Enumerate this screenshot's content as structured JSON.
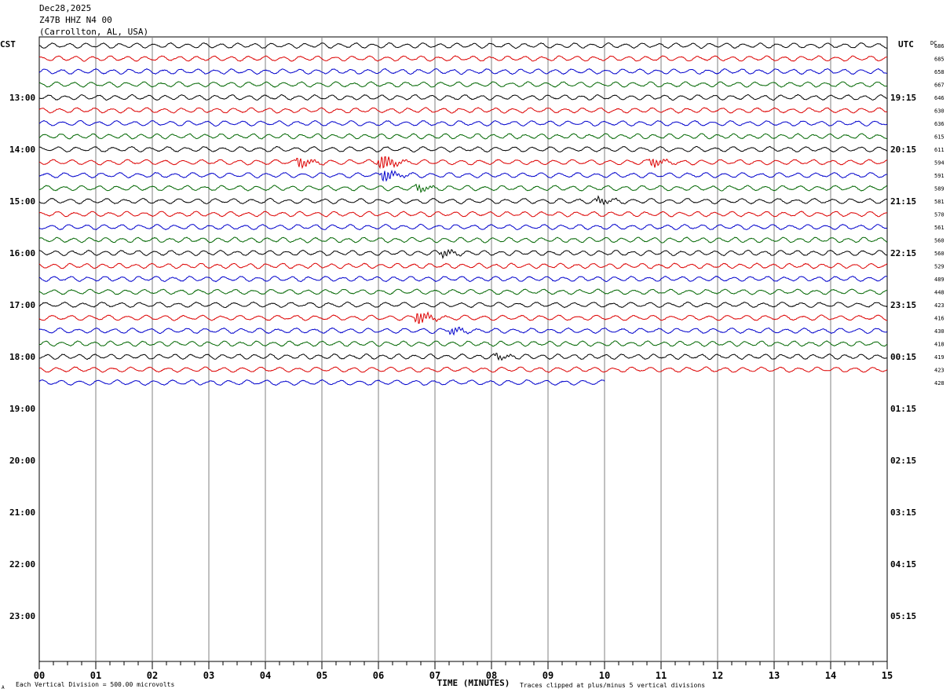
{
  "header": {
    "date": "Dec28,2025",
    "station": "Z47B HHZ N4 00",
    "location": "(Carrollton, AL, USA)"
  },
  "labels": {
    "left_tz": "CST",
    "right_tz": "UTC",
    "dc": "DC",
    "xlabel": "TIME (MINUTES)",
    "scale_note": "Each Vertical Division =  500.00 microvolts",
    "clip_note": "Traces clipped at plus/minus 5 vertical divisions",
    "corner_mark": "A"
  },
  "colors": {
    "cycle": [
      "#000000",
      "#dd0000",
      "#0000cc",
      "#006600"
    ],
    "grid": "#808080"
  },
  "chart_data": {
    "type": "line",
    "title": "Z47B HHZ N4 00",
    "xlabel": "TIME (MINUTES)",
    "xlim": [
      0,
      15
    ],
    "x_ticks": [
      "00",
      "01",
      "02",
      "03",
      "04",
      "05",
      "06",
      "07",
      "08",
      "09",
      "10",
      "11",
      "12",
      "13",
      "14",
      "15"
    ],
    "left_hour_labels": [
      "13:00",
      "14:00",
      "15:00",
      "16:00",
      "17:00",
      "18:00",
      "19:00",
      "20:00",
      "21:00",
      "22:00",
      "23:00"
    ],
    "right_hour_labels": [
      "19:15",
      "20:15",
      "21:15",
      "22:15",
      "23:15",
      "00:15",
      "01:15",
      "02:15",
      "03:15",
      "04:15",
      "05:15"
    ],
    "minutes_per_row": 15,
    "rows_per_hour": 4,
    "dc_offsets": [
      686,
      685,
      658,
      667,
      646,
      630,
      636,
      615,
      611,
      594,
      591,
      589,
      581,
      570,
      561,
      560,
      560,
      529,
      489,
      448,
      423,
      416,
      430,
      418,
      419,
      423,
      428
    ],
    "last_row_end_minute": 10,
    "events": [
      {
        "row": 9,
        "minute": 4.6,
        "amplitude": 2.5
      },
      {
        "row": 9,
        "minute": 6.05,
        "amplitude": 4.5
      },
      {
        "row": 9,
        "minute": 10.85,
        "amplitude": 2.0
      },
      {
        "row": 10,
        "minute": 6.1,
        "amplitude": 3.0
      },
      {
        "row": 11,
        "minute": 6.7,
        "amplitude": 1.6
      },
      {
        "row": 12,
        "minute": 9.9,
        "amplitude": 1.5
      },
      {
        "row": 16,
        "minute": 7.15,
        "amplitude": 1.6
      },
      {
        "row": 21,
        "minute": 6.7,
        "amplitude": 3.2
      },
      {
        "row": 22,
        "minute": 7.3,
        "amplitude": 1.6
      },
      {
        "row": 24,
        "minute": 8.1,
        "amplitude": 1.2
      }
    ]
  }
}
